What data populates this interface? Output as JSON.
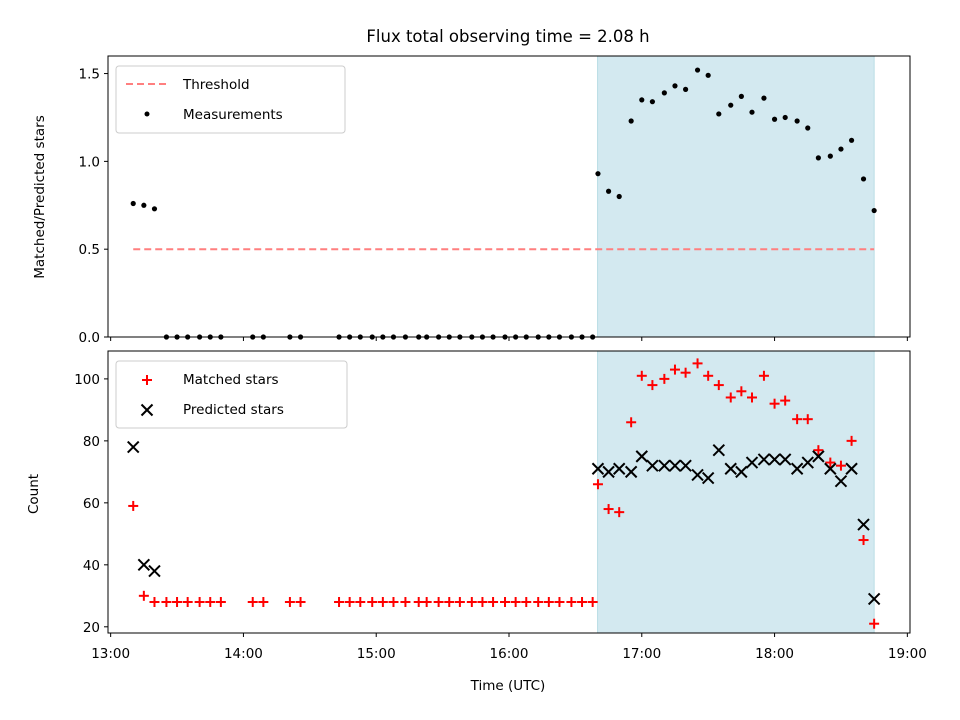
{
  "chart_data": {
    "title": "Flux total observing time = 2.08 h",
    "xlabel": "Time (UTC)",
    "x_unit": "hours (UTC)",
    "xlim": [
      12.98,
      19.02
    ],
    "x_ticks": [
      13,
      14,
      15,
      16,
      17,
      18,
      19
    ],
    "x_tick_labels": [
      "13:00",
      "14:00",
      "15:00",
      "16:00",
      "17:00",
      "18:00",
      "19:00"
    ],
    "shaded_span": {
      "x0": 16.667,
      "x1": 18.75,
      "color": "#d3e9f0"
    },
    "panels": [
      {
        "type": "scatter",
        "ylabel": "Matched/Predicted stars",
        "ylim": [
          0,
          1.6
        ],
        "y_ticks": [
          0,
          0.5,
          1,
          1.5
        ],
        "y_tick_labels": [
          "0.0",
          "0.5",
          "1.0",
          "1.5"
        ],
        "legend_position": "upper-left",
        "threshold": {
          "name": "Threshold",
          "y": 0.5,
          "x_range": [
            13.17,
            18.75
          ],
          "color": "#ff7f7f"
        },
        "series": [
          {
            "name": "Measurements",
            "marker": "dot",
            "color": "#000000",
            "x": [
              13.17,
              13.25,
              13.33,
              13.42,
              13.5,
              13.58,
              13.67,
              13.75,
              13.83,
              14.07,
              14.15,
              14.35,
              14.43,
              14.72,
              14.8,
              14.88,
              14.97,
              15.05,
              15.13,
              15.22,
              15.32,
              15.38,
              15.47,
              15.55,
              15.63,
              15.72,
              15.8,
              15.88,
              15.97,
              16.05,
              16.13,
              16.22,
              16.3,
              16.38,
              16.47,
              16.55,
              16.63,
              16.67,
              16.75,
              16.83,
              16.92,
              17.0,
              17.08,
              17.17,
              17.25,
              17.33,
              17.42,
              17.5,
              17.58,
              17.67,
              17.75,
              17.83,
              17.92,
              18.0,
              18.08,
              18.17,
              18.25,
              18.33,
              18.42,
              18.5,
              18.58,
              18.67,
              18.75
            ],
            "y": [
              0.76,
              0.75,
              0.73,
              0,
              0,
              0,
              0,
              0,
              0,
              0,
              0,
              0,
              0,
              0,
              0,
              0,
              0,
              0,
              0,
              0,
              0,
              0,
              0,
              0,
              0,
              0,
              0,
              0,
              0,
              0,
              0,
              0,
              0,
              0,
              0,
              0,
              0,
              0.93,
              0.83,
              0.8,
              1.23,
              1.35,
              1.34,
              1.39,
              1.43,
              1.41,
              1.52,
              1.49,
              1.27,
              1.32,
              1.37,
              1.28,
              1.36,
              1.24,
              1.25,
              1.23,
              1.19,
              1.02,
              1.03,
              1.07,
              1.12,
              0.9,
              0.72
            ]
          }
        ]
      },
      {
        "type": "scatter",
        "ylabel": "Count",
        "ylim": [
          18,
          109
        ],
        "y_ticks": [
          20,
          40,
          60,
          80,
          100
        ],
        "y_tick_labels": [
          "20",
          "40",
          "60",
          "80",
          "100"
        ],
        "legend_position": "upper-left",
        "series": [
          {
            "name": "Matched stars",
            "marker": "plus",
            "color": "#ff0000",
            "x": [
              13.17,
              13.25,
              13.33,
              13.42,
              13.5,
              13.58,
              13.67,
              13.75,
              13.83,
              14.07,
              14.15,
              14.35,
              14.43,
              14.72,
              14.8,
              14.88,
              14.97,
              15.05,
              15.13,
              15.22,
              15.32,
              15.38,
              15.47,
              15.55,
              15.63,
              15.72,
              15.8,
              15.88,
              15.97,
              16.05,
              16.13,
              16.22,
              16.3,
              16.38,
              16.47,
              16.55,
              16.63,
              16.67,
              16.75,
              16.83,
              16.92,
              17.0,
              17.08,
              17.17,
              17.25,
              17.33,
              17.42,
              17.5,
              17.58,
              17.67,
              17.75,
              17.83,
              17.92,
              18.0,
              18.08,
              18.17,
              18.25,
              18.33,
              18.42,
              18.5,
              18.58,
              18.67,
              18.75
            ],
            "y": [
              59,
              30,
              28,
              28,
              28,
              28,
              28,
              28,
              28,
              28,
              28,
              28,
              28,
              28,
              28,
              28,
              28,
              28,
              28,
              28,
              28,
              28,
              28,
              28,
              28,
              28,
              28,
              28,
              28,
              28,
              28,
              28,
              28,
              28,
              28,
              28,
              28,
              66,
              58,
              57,
              86,
              101,
              98,
              100,
              103,
              102,
              105,
              101,
              98,
              94,
              96,
              94,
              101,
              92,
              93,
              87,
              87,
              77,
              73,
              72,
              80,
              48,
              21
            ]
          },
          {
            "name": "Predicted stars",
            "marker": "x",
            "color": "#000000",
            "x": [
              13.17,
              13.25,
              13.33,
              16.67,
              16.75,
              16.83,
              16.92,
              17.0,
              17.08,
              17.17,
              17.25,
              17.33,
              17.42,
              17.5,
              17.58,
              17.67,
              17.75,
              17.83,
              17.92,
              18.0,
              18.08,
              18.17,
              18.25,
              18.33,
              18.42,
              18.5,
              18.58,
              18.67,
              18.75
            ],
            "y": [
              78,
              40,
              38,
              71,
              70,
              71,
              70,
              75,
              72,
              72,
              72,
              72,
              69,
              68,
              77,
              71,
              70,
              73,
              74,
              74,
              74,
              71,
              73,
              75,
              71,
              67,
              71,
              53,
              29
            ]
          }
        ]
      }
    ]
  }
}
